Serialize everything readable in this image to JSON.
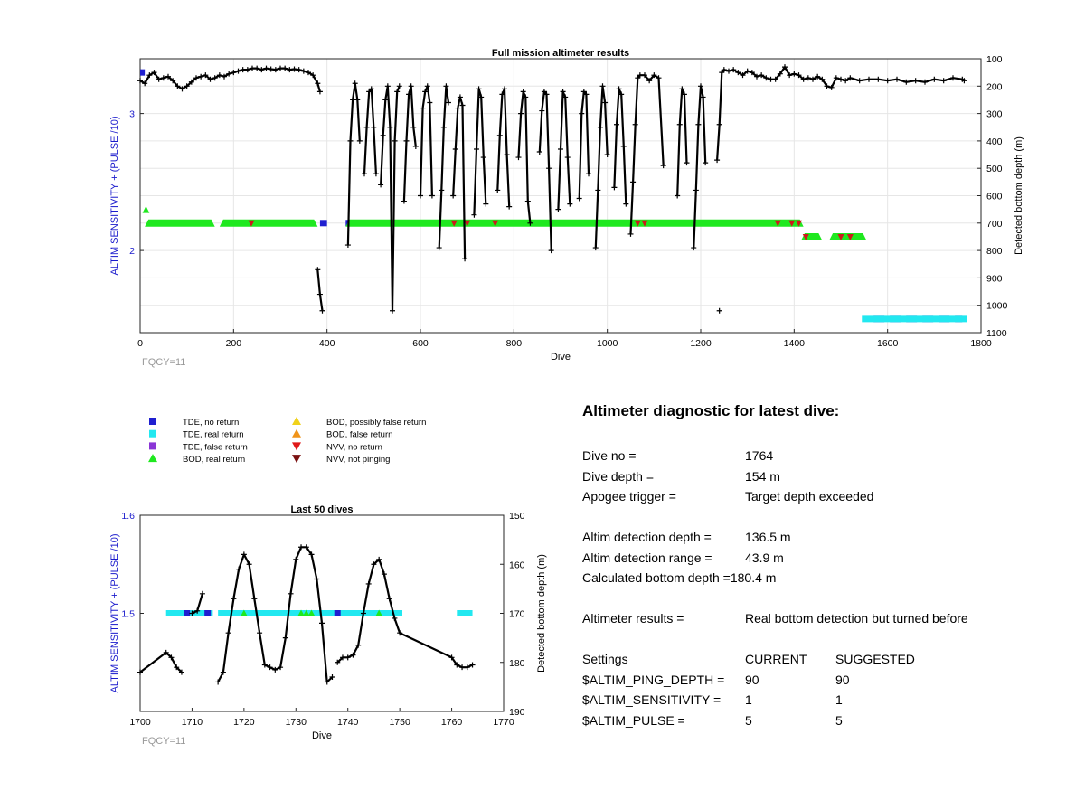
{
  "chart_data": [
    {
      "type": "scatter",
      "title": "Full mission altimeter results",
      "xlabel": "Dive",
      "ylabel": "ALTIM SENSITIVITY + (PULSE /10)",
      "y2label": "Detected bottom depth (m)",
      "xlim": [
        0,
        1800
      ],
      "ylim": [
        1.4,
        3.4
      ],
      "y2lim": [
        1100,
        100
      ],
      "xticks": [
        0,
        200,
        400,
        600,
        800,
        1000,
        1200,
        1400,
        1600,
        1800
      ],
      "yticks": [
        2,
        3
      ],
      "y2ticks": [
        100,
        200,
        300,
        400,
        500,
        600,
        700,
        800,
        900,
        1000,
        1100
      ],
      "grid": true,
      "footnote": "FQCY=11",
      "series": [
        {
          "name": "TDE, no return",
          "color": "#1f1fd0",
          "segments": [
            {
              "x0": 0,
              "x1": 10,
              "y": 3.3
            },
            {
              "x0": 385,
              "x1": 400,
              "y": 2.2
            },
            {
              "x0": 440,
              "x1": 1220,
              "y": 2.2,
              "dashed": true
            },
            {
              "x0": 1570,
              "x1": 1760,
              "y": 1.5,
              "dashed": true
            }
          ]
        },
        {
          "name": "TDE, real return",
          "color": "#22e8f0",
          "segments": [
            {
              "x0": 1545,
              "x1": 1770,
              "y": 1.5
            }
          ]
        },
        {
          "name": "BOD, real return",
          "color": "#1fe81f",
          "segments": [
            {
              "x0": 5,
              "x1": 20,
              "y": 2.3
            },
            {
              "x0": 10,
              "x1": 160,
              "y": 2.2
            },
            {
              "x0": 170,
              "x1": 380,
              "y": 2.2
            },
            {
              "x0": 440,
              "x1": 1420,
              "y": 2.2
            },
            {
              "x0": 1415,
              "x1": 1460,
              "y": 2.1
            },
            {
              "x0": 1475,
              "x1": 1555,
              "y": 2.1
            }
          ]
        },
        {
          "name": "NVV, no return",
          "color": "#cc1a1a",
          "x": [
            238,
            672,
            700,
            760,
            1065,
            1080,
            1365,
            1395,
            1410,
            1425,
            1500,
            1520
          ],
          "y": [
            2.2,
            2.2,
            2.2,
            2.2,
            2.2,
            2.2,
            2.2,
            2.2,
            2.2,
            2.1,
            2.1,
            2.1
          ]
        },
        {
          "name": "Detected bottom depth",
          "axis": "right",
          "color": "#000000",
          "x": [
            0,
            10,
            20,
            30,
            40,
            50,
            60,
            70,
            80,
            90,
            100,
            110,
            120,
            130,
            140,
            150,
            160,
            170,
            180,
            190,
            200,
            210,
            220,
            230,
            240,
            250,
            260,
            270,
            280,
            290,
            300,
            310,
            320,
            330,
            340,
            350,
            360,
            370,
            380,
            385,
            null,
            380,
            385,
            390,
            null,
            445,
            450,
            455,
            460,
            465,
            470,
            null,
            480,
            485,
            490,
            495,
            500,
            505,
            null,
            515,
            520,
            525,
            530,
            535,
            540,
            545,
            550,
            555,
            null,
            565,
            570,
            575,
            580,
            585,
            590,
            null,
            600,
            605,
            610,
            615,
            620,
            625,
            null,
            640,
            645,
            650,
            655,
            660,
            null,
            670,
            675,
            680,
            685,
            690,
            695,
            null,
            715,
            720,
            725,
            730,
            735,
            740,
            null,
            765,
            770,
            775,
            780,
            785,
            790,
            null,
            810,
            815,
            820,
            825,
            830,
            835,
            null,
            855,
            860,
            865,
            870,
            875,
            880,
            null,
            895,
            900,
            905,
            910,
            915,
            920,
            null,
            940,
            945,
            950,
            955,
            960,
            null,
            975,
            980,
            985,
            990,
            995,
            1000,
            null,
            1015,
            1020,
            1025,
            1030,
            1035,
            1040,
            null,
            1050,
            1055,
            1060,
            1065,
            1070,
            1080,
            1090,
            1100,
            1110,
            1120,
            null,
            1150,
            1155,
            1160,
            1165,
            1170,
            null,
            1185,
            1190,
            1195,
            1200,
            1205,
            1210,
            null,
            1235,
            1240,
            1245,
            1250,
            1260,
            1270,
            1280,
            1290,
            1300,
            1310,
            1320,
            1330,
            1340,
            1350,
            1360,
            1370,
            1380,
            1390,
            1400,
            1410,
            1420,
            1430,
            1440,
            1450,
            1460,
            1470,
            1480,
            1490,
            1500,
            1510,
            1520,
            1540,
            1560,
            1580,
            1600,
            1620,
            1640,
            1660,
            1680,
            1700,
            1720,
            1740,
            1760,
            1764,
            null,
            1240
          ],
          "y": [
            180,
            190,
            160,
            150,
            175,
            170,
            165,
            180,
            200,
            210,
            200,
            185,
            170,
            165,
            160,
            175,
            170,
            160,
            165,
            155,
            150,
            145,
            140,
            140,
            135,
            135,
            140,
            135,
            138,
            140,
            135,
            135,
            140,
            138,
            140,
            145,
            150,
            160,
            190,
            220,
            null,
            870,
            960,
            1020,
            null,
            780,
            400,
            250,
            190,
            250,
            400,
            null,
            520,
            350,
            220,
            210,
            350,
            520,
            null,
            560,
            380,
            250,
            200,
            350,
            1020,
            400,
            220,
            200,
            null,
            620,
            400,
            230,
            200,
            350,
            420,
            null,
            600,
            280,
            220,
            200,
            260,
            600,
            null,
            790,
            580,
            350,
            200,
            260,
            null,
            600,
            430,
            280,
            240,
            270,
            830,
            null,
            670,
            430,
            210,
            240,
            460,
            630,
            null,
            580,
            380,
            230,
            210,
            450,
            640,
            null,
            460,
            300,
            220,
            240,
            620,
            700,
            null,
            440,
            290,
            220,
            230,
            500,
            800,
            null,
            650,
            430,
            220,
            240,
            460,
            630,
            null,
            610,
            300,
            220,
            230,
            520,
            null,
            790,
            580,
            350,
            200,
            260,
            450,
            null,
            570,
            340,
            210,
            230,
            420,
            630,
            null,
            740,
            550,
            340,
            170,
            160,
            160,
            180,
            160,
            170,
            490,
            null,
            600,
            340,
            210,
            230,
            480,
            null,
            790,
            580,
            340,
            200,
            240,
            480,
            null,
            470,
            340,
            150,
            140,
            145,
            140,
            150,
            160,
            145,
            150,
            165,
            160,
            170,
            175,
            175,
            155,
            130,
            160,
            155,
            160,
            175,
            170,
            175,
            165,
            175,
            200,
            205,
            170,
            175,
            180,
            170,
            180,
            175,
            175,
            180,
            175,
            185,
            180,
            185,
            175,
            180,
            170,
            175,
            180,
            null,
            1020
          ]
        }
      ]
    },
    {
      "type": "scatter",
      "title": "Last 50 dives",
      "xlabel": "Dive",
      "ylabel": "ALTIM SENSITIVITY + (PULSE /10)",
      "y2label": "Detected bottom depth (m)",
      "xlim": [
        1700,
        1770
      ],
      "ylim": [
        1.4,
        1.6
      ],
      "y2lim": [
        190,
        150
      ],
      "xticks": [
        1700,
        1710,
        1720,
        1730,
        1740,
        1750,
        1760,
        1770
      ],
      "yticks": [
        1.5,
        1.6
      ],
      "y2ticks": [
        150,
        160,
        170,
        180,
        190
      ],
      "grid": false,
      "footnote": "FQCY=11",
      "series": [
        {
          "name": "TDE, real return",
          "color": "#22e8f0",
          "segments": [
            {
              "x0": 1705,
              "x1": 1714,
              "y": 1.5
            },
            {
              "x0": 1715,
              "x1": 1750.5,
              "y": 1.5
            },
            {
              "x0": 1761,
              "x1": 1764,
              "y": 1.5
            }
          ]
        },
        {
          "name": "TDE, no return",
          "color": "#1f1fd0",
          "x": [
            1709,
            1713,
            1738
          ],
          "y": [
            1.5,
            1.5,
            1.5
          ]
        },
        {
          "name": "BOD, real return",
          "color": "#1fe81f",
          "x": [
            1720,
            1731,
            1732,
            1733,
            1746
          ],
          "y": [
            1.5,
            1.5,
            1.5,
            1.5,
            1.5
          ]
        },
        {
          "name": "Detected bottom depth",
          "axis": "right",
          "color": "#000000",
          "x": [
            1700,
            1705,
            1706,
            1707,
            1708,
            null,
            1710,
            1711,
            1712,
            null,
            1715,
            1716,
            1717,
            1718,
            1719,
            1720,
            1721,
            1722,
            1723,
            1724,
            1725,
            1726,
            1727,
            1728,
            1729,
            1730,
            1731,
            1732,
            1733,
            1734,
            1735,
            1736,
            1737,
            null,
            1738,
            1739,
            1740,
            1741,
            1742,
            1743,
            1744,
            1745,
            1746,
            1747,
            1748,
            1749,
            1750,
            1760,
            1761,
            1762,
            1763,
            1764
          ],
          "y": [
            182,
            178,
            179,
            181,
            182,
            null,
            170,
            169.5,
            166,
            null,
            184,
            182,
            174,
            167,
            161,
            158,
            160,
            167,
            174,
            180.5,
            181,
            181.5,
            181,
            175,
            166,
            159,
            156.5,
            156.5,
            158,
            163,
            172,
            184,
            183,
            null,
            180,
            179,
            179,
            178.5,
            176.5,
            170,
            164,
            160,
            159,
            162,
            167,
            171,
            174,
            179,
            180.5,
            181,
            181,
            180.5
          ]
        }
      ]
    }
  ],
  "legend": {
    "col1": [
      {
        "label": "TDE, no return",
        "marker": "square",
        "color": "#1f1fd0"
      },
      {
        "label": "TDE, real return",
        "marker": "square",
        "color": "#22e8f0"
      },
      {
        "label": "TDE, false return",
        "marker": "square",
        "color": "#8a35d6"
      },
      {
        "label": "BOD, real return",
        "marker": "triangle-up",
        "color": "#1fe81f"
      }
    ],
    "col2": [
      {
        "label": "BOD, possibly false return",
        "marker": "triangle-up",
        "color": "#f0d21a"
      },
      {
        "label": "BOD, false return",
        "marker": "triangle-up",
        "color": "#f0941a"
      },
      {
        "label": "NVV, no return",
        "marker": "triangle-down",
        "color": "#e01818"
      },
      {
        "label": "NVV, not pinging",
        "marker": "triangle-down",
        "color": "#7a1010"
      }
    ]
  },
  "diagnostic": {
    "title": "Altimeter diagnostic for latest dive:",
    "dive_no_label": "Dive no =",
    "dive_no": "1764",
    "dive_depth_label": "Dive depth =",
    "dive_depth": "154 m",
    "apogee_label": "Apogee trigger =",
    "apogee": "Target depth exceeded",
    "altim_depth_label": "Altim detection depth =",
    "altim_depth": "136.5 m",
    "altim_range_label": "Altim detection range =",
    "altim_range": "43.9 m",
    "calc_bottom_label": "Calculated bottom depth =",
    "calc_bottom": "180.4 m",
    "results_label": "Altimeter results =",
    "results": "Real bottom detection but turned before",
    "settings_label": "Settings",
    "current_label": "CURRENT",
    "suggested_label": "SUGGESTED",
    "settings": [
      {
        "name": "$ALTIM_PING_DEPTH =",
        "current": "90",
        "suggested": "90"
      },
      {
        "name": "$ALTIM_SENSITIVITY =",
        "current": "1",
        "suggested": "1"
      },
      {
        "name": "$ALTIM_PULSE =",
        "current": "5",
        "suggested": "5"
      }
    ]
  },
  "colors": {
    "left_axis": "#1a1acc",
    "footnote": "#999999",
    "grid": "#e6e6e6"
  }
}
